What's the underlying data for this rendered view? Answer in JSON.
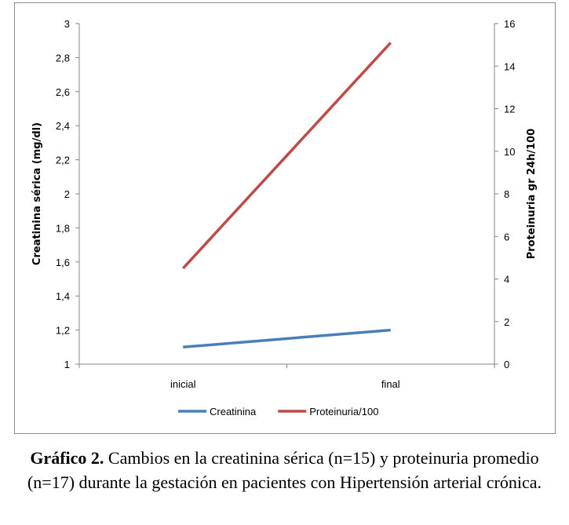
{
  "chart_data": {
    "type": "line",
    "categories": [
      "inicial",
      "final"
    ],
    "series": [
      {
        "name": "Creatinina",
        "axis": "left",
        "color": "#4a7ebb",
        "values": [
          1.1,
          1.2
        ]
      },
      {
        "name": "Proteinuria/100",
        "axis": "right",
        "color": "#be4b48",
        "values": [
          4.5,
          15.1
        ]
      }
    ],
    "y_left": {
      "label": "Creatinina sérica  (mg/dl)",
      "min": 1,
      "max": 3,
      "ticks": [
        "1",
        "1,2",
        "1,4",
        "1,6",
        "1,8",
        "2",
        "2,2",
        "2,4",
        "2,6",
        "2,8",
        "3"
      ]
    },
    "y_right": {
      "label": "Proteinuria gr 24h/100",
      "min": 0,
      "max": 16,
      "ticks": [
        "0",
        "2",
        "4",
        "6",
        "8",
        "10",
        "12",
        "14",
        "16"
      ]
    },
    "grid": false,
    "legend_position": "bottom"
  },
  "caption": {
    "label": "Gráfico 2.",
    "text": " Cambios en la creatinina sérica (n=15) y proteinuria promedio (n=17) durante la gestación en pacientes con Hipertensión arterial crónica."
  }
}
